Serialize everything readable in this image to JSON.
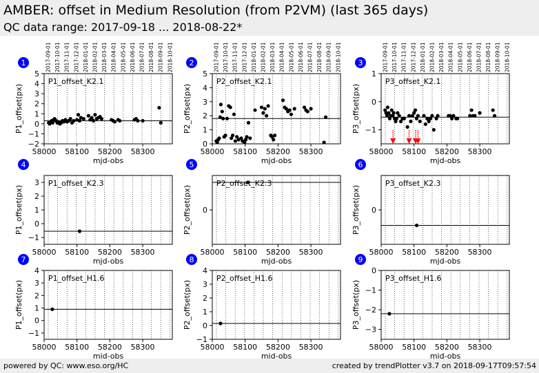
{
  "header": {
    "title": "AMBER: offset in Medium Resolution (from P2VM) (last 365 days)",
    "subtitle": "QC data range: 2017-09-18 ... 2018-08-22*"
  },
  "footer": {
    "left": "powered by QC: www.eso.org/HC",
    "right": "created by trendPlotter v3.7 on 2018-09-17T09:57:54"
  },
  "colors": {
    "panel_number": "#0000ff",
    "outlier_arrow": "#ff0000",
    "data_point": "#000000",
    "header_bg": "#eeeeee"
  },
  "chart_data": [
    {
      "panel_number": "1",
      "type": "scatter",
      "label": "P1_offset_K2.1",
      "xlabel": "mjd-obs",
      "ylabel": "P1_offset(px)",
      "xlim": [
        58000,
        58390
      ],
      "ylim": [
        -2,
        5
      ],
      "xticks": [
        58000,
        58100,
        58200,
        58300
      ],
      "yticks": [
        -2,
        -1,
        0,
        1,
        2,
        3,
        4,
        5
      ],
      "reference_line": 0.3,
      "date_ticks": [
        "2017-09-01",
        "2017-10-01",
        "2017-11-01",
        "2017-12-01",
        "2018-01-01",
        "2018-02-01",
        "2018-03-01",
        "2018-04-01",
        "2018-05-01",
        "2018-06-01",
        "2018-07-01",
        "2018-08-01",
        "2018-09-01",
        "2018-10-01"
      ],
      "x": [
        58014,
        58017,
        58020,
        58023,
        58026,
        58029,
        58032,
        58036,
        58040,
        58044,
        58048,
        58052,
        58056,
        58060,
        58065,
        58070,
        58075,
        58080,
        58085,
        58090,
        58100,
        58104,
        58108,
        58112,
        58120,
        58135,
        58140,
        58145,
        58150,
        58155,
        58160,
        58165,
        58170,
        58175,
        58205,
        58210,
        58215,
        58225,
        58230,
        58275,
        58280,
        58285,
        58300,
        58350,
        58355
      ],
      "y": [
        0.1,
        0.0,
        0.2,
        0.3,
        0.1,
        0.4,
        0.5,
        0.3,
        0.1,
        0.2,
        0.0,
        0.1,
        0.3,
        0.2,
        0.4,
        0.2,
        0.3,
        0.5,
        0.1,
        0.3,
        0.4,
        0.9,
        0.3,
        0.6,
        0.5,
        0.8,
        0.4,
        0.6,
        0.3,
        0.9,
        0.5,
        0.6,
        0.7,
        0.5,
        0.4,
        0.3,
        0.2,
        0.4,
        0.3,
        0.4,
        0.5,
        0.3,
        0.3,
        1.6,
        0.1
      ],
      "outliers_x": []
    },
    {
      "panel_number": "2",
      "type": "scatter",
      "label": "P2_offset_K2.1",
      "xlabel": "mjd-obs",
      "ylabel": "P2_offset(px)",
      "xlim": [
        58000,
        58390
      ],
      "ylim": [
        0,
        5
      ],
      "xticks": [
        58000,
        58100,
        58200,
        58300
      ],
      "yticks": [
        0,
        1,
        2,
        3,
        4,
        5
      ],
      "reference_line": 1.8,
      "date_ticks": [
        "2017-09-01",
        "2017-10-01",
        "2017-11-01",
        "2017-12-01",
        "2018-01-01",
        "2018-02-01",
        "2018-03-01",
        "2018-04-01",
        "2018-05-01",
        "2018-06-01",
        "2018-07-01",
        "2018-08-01",
        "2018-09-01",
        "2018-10-01"
      ],
      "x": [
        58012,
        58015,
        58018,
        58021,
        58024,
        58026,
        58030,
        58033,
        58036,
        58040,
        58045,
        58050,
        58055,
        58058,
        58062,
        58066,
        58070,
        58075,
        58080,
        58088,
        58092,
        58098,
        58102,
        58105,
        58110,
        58115,
        58130,
        58150,
        58155,
        58160,
        58165,
        58170,
        58178,
        58182,
        58186,
        58190,
        58215,
        58220,
        58225,
        58230,
        58235,
        58240,
        58250,
        58280,
        58285,
        58290,
        58300,
        58340,
        58345
      ],
      "y": [
        0.2,
        0.1,
        0.3,
        0.4,
        1.9,
        2.8,
        2.3,
        1.8,
        0.5,
        0.6,
        1.8,
        2.7,
        2.6,
        0.4,
        0.6,
        2.1,
        0.2,
        0.5,
        0.3,
        0.4,
        0.2,
        0.1,
        0.3,
        0.5,
        1.5,
        0.4,
        2.4,
        2.6,
        2.2,
        2.5,
        2.0,
        2.7,
        0.6,
        0.5,
        0.3,
        0.6,
        3.1,
        2.6,
        2.5,
        2.3,
        2.4,
        2.1,
        2.5,
        2.6,
        2.4,
        2.3,
        2.5,
        0.1,
        1.9
      ],
      "outliers_x": []
    },
    {
      "panel_number": "3",
      "type": "scatter",
      "label": "P3_offset_K2.1",
      "xlabel": "mjd-obs",
      "ylabel": "P3_offset(px)",
      "xlim": [
        58000,
        58390
      ],
      "ylim": [
        -1.5,
        1
      ],
      "xticks": [
        58000,
        58100,
        58200,
        58300
      ],
      "yticks": [
        -1,
        0,
        1
      ],
      "reference_line": -0.55,
      "date_ticks": [
        "2017-09-01",
        "2017-10-01",
        "2017-11-01",
        "2017-12-01",
        "2018-01-01",
        "2018-02-01",
        "2018-03-01",
        "2018-04-01",
        "2018-05-01",
        "2018-06-01",
        "2018-07-01",
        "2018-08-01",
        "2018-09-01",
        "2018-10-01"
      ],
      "x": [
        58012,
        58015,
        58018,
        58020,
        58023,
        58026,
        58029,
        58032,
        58035,
        58038,
        58041,
        58044,
        58047,
        58050,
        58055,
        58060,
        58065,
        58070,
        58080,
        58085,
        58090,
        58095,
        58100,
        58104,
        58108,
        58112,
        58118,
        58130,
        58135,
        58140,
        58145,
        58150,
        58155,
        58160,
        58168,
        58172,
        58205,
        58210,
        58215,
        58220,
        58228,
        58232,
        58270,
        58275,
        58280,
        58285,
        58300,
        58340,
        58345
      ],
      "y": [
        -0.3,
        -0.4,
        -0.5,
        -0.2,
        -0.4,
        -0.6,
        -0.5,
        -0.3,
        -0.5,
        -0.4,
        -0.6,
        -0.7,
        -0.6,
        -0.4,
        -0.5,
        -0.7,
        -0.6,
        -0.6,
        -0.9,
        -0.5,
        -0.7,
        -0.5,
        -0.4,
        -0.3,
        -0.6,
        -0.5,
        -0.7,
        -0.5,
        -0.8,
        -0.6,
        -0.7,
        -0.6,
        -0.5,
        -1.0,
        -0.6,
        -0.5,
        -0.5,
        -0.5,
        -0.6,
        -0.5,
        -0.6,
        -0.6,
        -0.5,
        -0.3,
        -0.5,
        -0.5,
        -0.4,
        -0.3,
        -0.5
      ],
      "outliers_x": [
        58036,
        58085,
        58105,
        58112
      ]
    },
    {
      "panel_number": "4",
      "type": "scatter",
      "label": "P1_offset_K2.3",
      "xlabel": "mjd-obs",
      "ylabel": "P1_offset(px)",
      "xlim": [
        58000,
        58390
      ],
      "ylim": [
        -1.5,
        3.5
      ],
      "xticks": [
        58000,
        58100,
        58200,
        58300
      ],
      "yticks": [
        -1,
        0,
        1,
        2,
        3
      ],
      "reference_line": -0.55,
      "date_ticks": [],
      "x": [
        58108
      ],
      "y": [
        -0.55
      ],
      "outliers_x": []
    },
    {
      "panel_number": "5",
      "type": "scatter",
      "label": "P2_offset_K2.3",
      "xlabel": "mjd-obs",
      "ylabel": "P2_offset(px)",
      "xlim": [
        58000,
        58390
      ],
      "ylim": [
        -1,
        1
      ],
      "xticks": [
        58000,
        58100,
        58200,
        58300
      ],
      "yticks": [
        0
      ],
      "reference_line": 0.8,
      "date_ticks": [],
      "x": [
        58108
      ],
      "y": [
        0.8
      ],
      "outliers_x": []
    },
    {
      "panel_number": "6",
      "type": "scatter",
      "label": "P3_offset_K2.3",
      "xlabel": "mjd-obs",
      "ylabel": "P3_offset(px)",
      "xlim": [
        58000,
        58390
      ],
      "ylim": [
        -1,
        1
      ],
      "xticks": [
        58000,
        58100,
        58200,
        58300
      ],
      "yticks": [
        0
      ],
      "reference_line": -0.45,
      "date_ticks": [],
      "x": [
        58108
      ],
      "y": [
        -0.45
      ],
      "outliers_x": []
    },
    {
      "panel_number": "7",
      "type": "scatter",
      "label": "P1_offset_H1.6",
      "xlabel": "mjd-obs",
      "ylabel": "P1_offset(px)",
      "xlim": [
        58000,
        58390
      ],
      "ylim": [
        -1.5,
        4
      ],
      "xticks": [
        58000,
        58100,
        58200,
        58300
      ],
      "yticks": [
        -1,
        0,
        1,
        2,
        3,
        4
      ],
      "reference_line": 0.9,
      "date_ticks": [],
      "x": [
        58025
      ],
      "y": [
        0.9
      ],
      "outliers_x": []
    },
    {
      "panel_number": "8",
      "type": "scatter",
      "label": "P2_offset_H1.6",
      "xlabel": "mjd-obs",
      "ylabel": "P2_offset(px)",
      "xlim": [
        58000,
        58390
      ],
      "ylim": [
        -1,
        4
      ],
      "xticks": [
        58000,
        58100,
        58200,
        58300
      ],
      "yticks": [
        -1,
        0,
        1,
        2,
        3,
        4
      ],
      "reference_line": 0.15,
      "date_ticks": [],
      "x": [
        58025
      ],
      "y": [
        0.15
      ],
      "outliers_x": []
    },
    {
      "panel_number": "9",
      "type": "scatter",
      "label": "P3_offset_H1.6",
      "xlabel": "mjd-obs",
      "ylabel": "P3_offset(px)",
      "xlim": [
        58000,
        58390
      ],
      "ylim": [
        -3.5,
        0
      ],
      "xticks": [
        58000,
        58100,
        58200,
        58300
      ],
      "yticks": [
        -3,
        -2,
        -1,
        0
      ],
      "reference_line": -2.2,
      "date_ticks": [],
      "x": [
        58025
      ],
      "y": [
        -2.2
      ],
      "outliers_x": []
    }
  ]
}
